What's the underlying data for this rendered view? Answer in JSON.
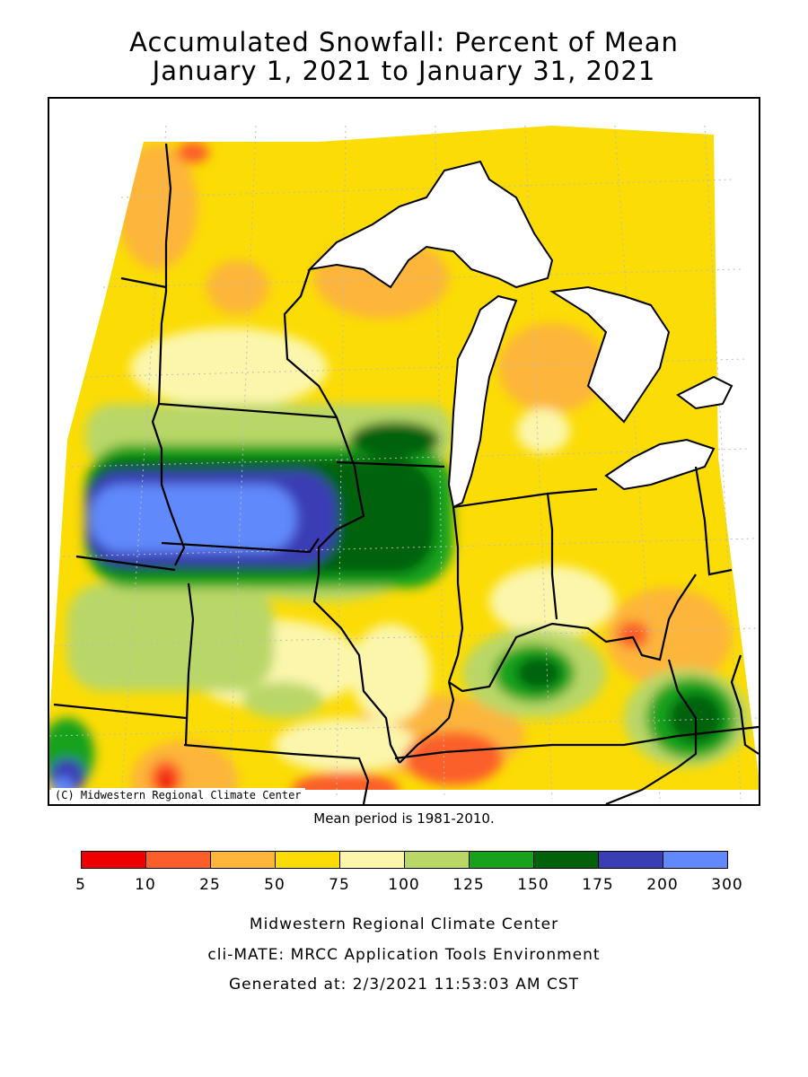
{
  "title_line1": "Accumulated Snowfall: Percent of Mean",
  "title_line2": "January 1, 2021 to January 31, 2021",
  "copyright": "(C) Midwestern Regional Climate Center",
  "mean_period": "Mean period is 1981-2010.",
  "legend": {
    "bins": [
      {
        "from": "5",
        "to": "10",
        "color": "#ee0000"
      },
      {
        "from": "10",
        "to": "25",
        "color": "#fb5e2b"
      },
      {
        "from": "25",
        "to": "50",
        "color": "#fdb53a"
      },
      {
        "from": "50",
        "to": "75",
        "color": "#fbdc04"
      },
      {
        "from": "75",
        "to": "100",
        "color": "#fbf6ab"
      },
      {
        "from": "100",
        "to": "125",
        "color": "#b9d767"
      },
      {
        "from": "125",
        "to": "150",
        "color": "#18a21c"
      },
      {
        "from": "150",
        "to": "175",
        "color": "#01620b"
      },
      {
        "from": "175",
        "to": "200",
        "color": "#3a3eb5"
      },
      {
        "from": "200",
        "to": "300",
        "color": "#6189fb"
      }
    ],
    "ticks": [
      "5",
      "10",
      "25",
      "50",
      "75",
      "100",
      "125",
      "150",
      "175",
      "200",
      "300"
    ]
  },
  "footer": {
    "line1": "Midwestern Regional Climate Center",
    "line2": "cli-MATE: MRCC Application Tools Environment",
    "line3": "Generated at: 2/3/2021 11:53:03 AM CST"
  },
  "colors": {
    "lake": "#ffffff",
    "border": "#000000",
    "grid": "#bbbbbb"
  }
}
